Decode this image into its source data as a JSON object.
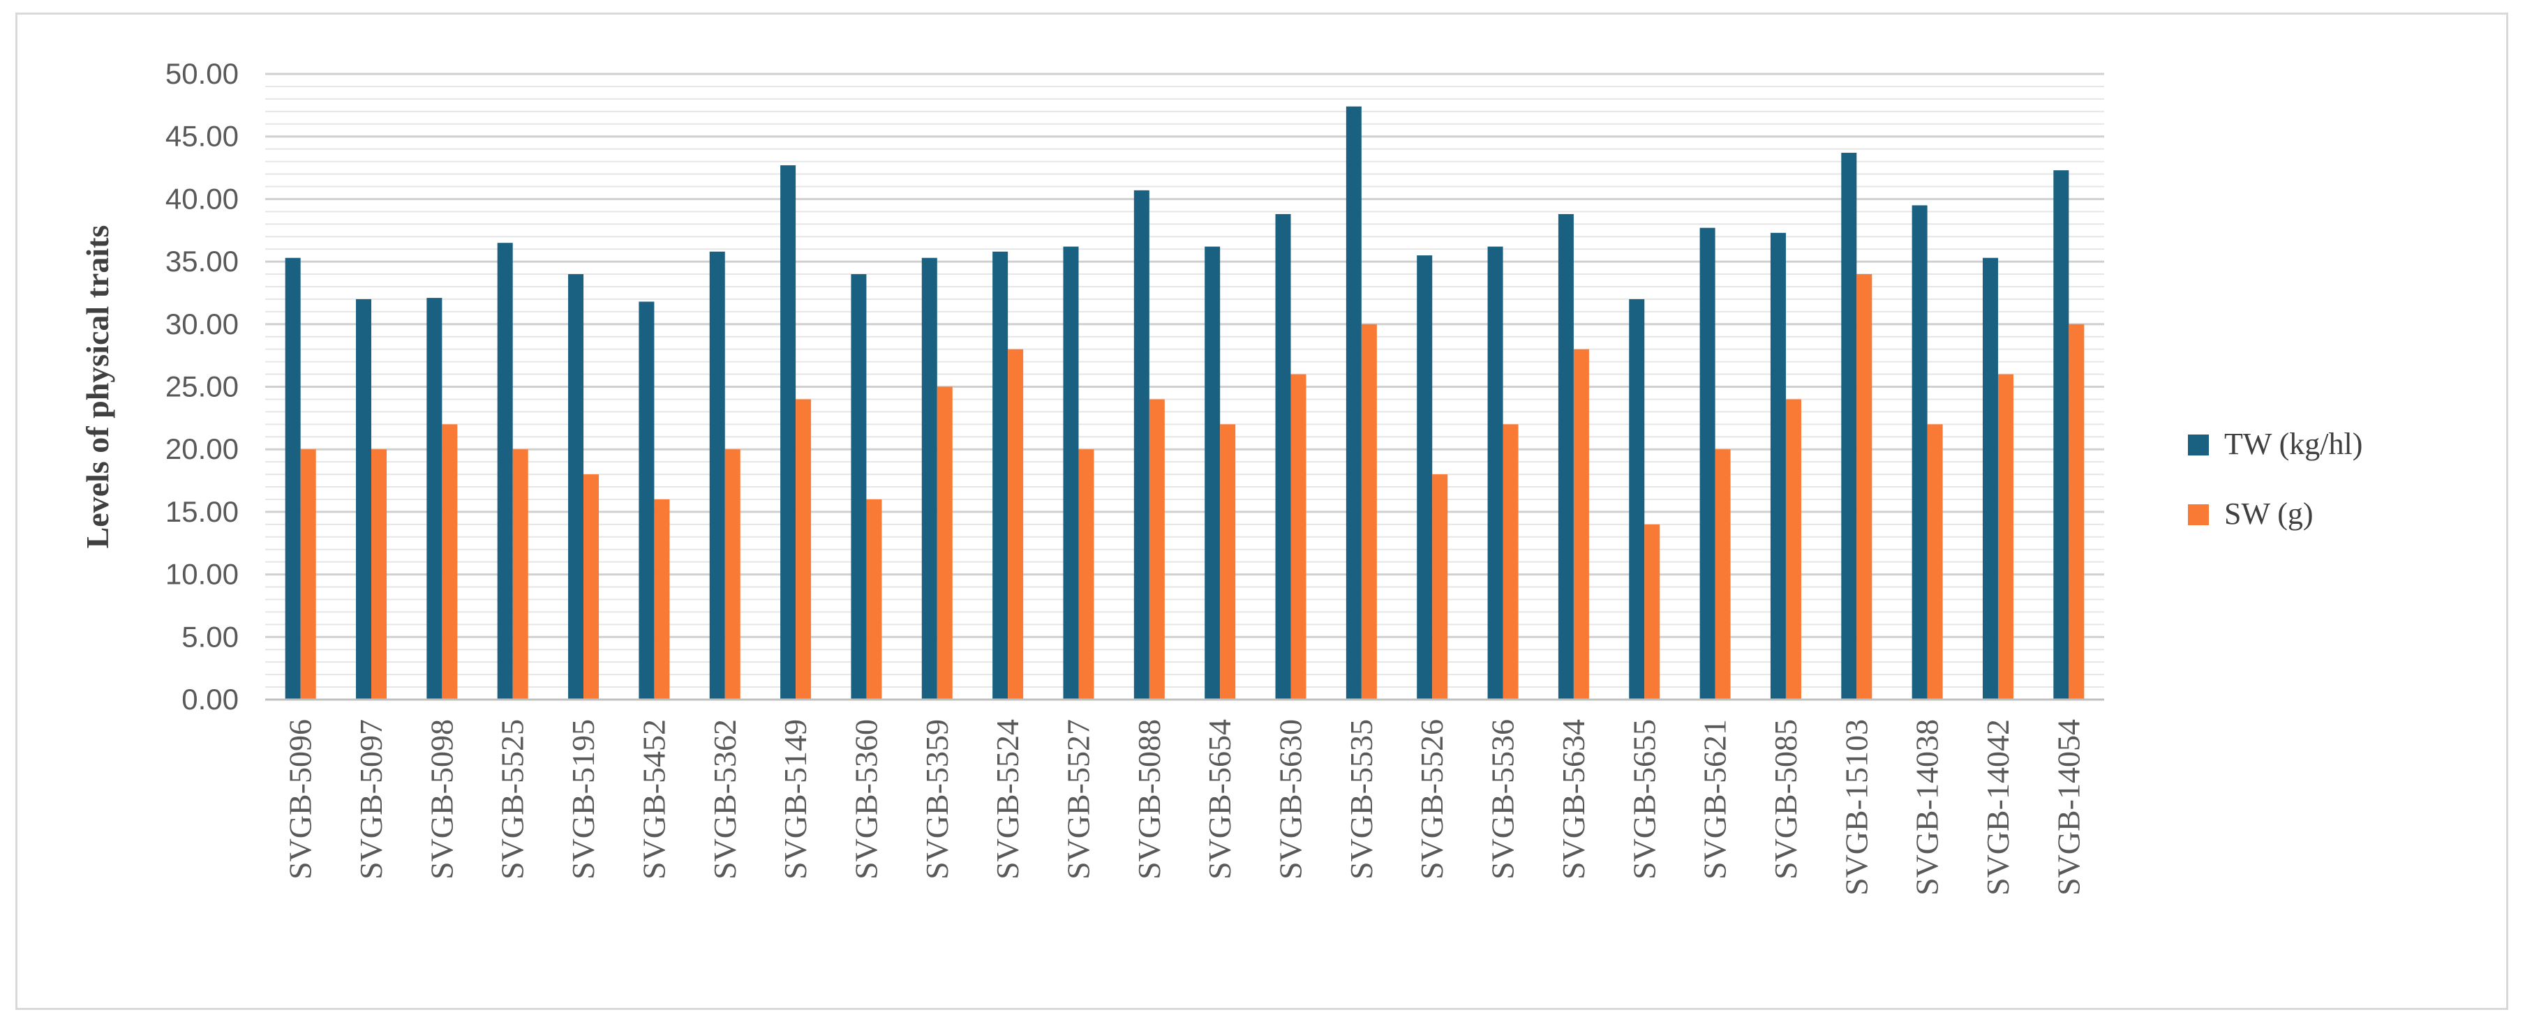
{
  "chart_data": {
    "type": "bar",
    "title": "",
    "xlabel": "",
    "ylabel": "Levels of  physical traits",
    "ylim": [
      0,
      50
    ],
    "y_tick_step": 5,
    "y_tick_labels": [
      "0.00",
      "5.00",
      "10.00",
      "15.00",
      "20.00",
      "25.00",
      "30.00",
      "35.00",
      "40.00",
      "45.00",
      "50.00"
    ],
    "grid": true,
    "legend_position": "right",
    "categories": [
      "SVGB-5096",
      "SVGB-5097",
      "SVGB-5098",
      "SVGB-5525",
      "SVGB-5195",
      "SVGB-5452",
      "SVGB-5362",
      "SVGB-5149",
      "SVGB-5360",
      "SVGB-5359",
      "SVGB-5524",
      "SVGB-5527",
      "SVGB-5088",
      "SVGB-5654",
      "SVGB-5630",
      "SVGB-5535",
      "SVGB-5526",
      "SVGB-5536",
      "SVGB-5634",
      "SVGB-5655",
      "SVGB-5621",
      "SVGB-5085",
      "SVGB-15103",
      "SVGB-14038",
      "SVGB-14042",
      "SVGB-14054"
    ],
    "series": [
      {
        "name": "TW (kg/hl)",
        "color": "#1a6181",
        "values": [
          35.3,
          32.0,
          32.1,
          36.5,
          34.0,
          31.8,
          35.8,
          42.7,
          34.0,
          35.3,
          35.8,
          36.2,
          40.7,
          36.2,
          38.8,
          47.4,
          35.5,
          36.2,
          38.8,
          32.0,
          37.7,
          37.3,
          43.7,
          39.5,
          35.3,
          42.3
        ]
      },
      {
        "name": "SW (g)",
        "color": "#f97a35",
        "values": [
          20,
          20,
          22,
          20,
          18,
          16,
          20,
          24,
          16,
          25,
          28,
          20,
          24,
          22,
          26,
          30,
          18,
          22,
          28,
          14,
          20,
          24,
          34,
          22,
          26,
          30
        ]
      }
    ]
  }
}
